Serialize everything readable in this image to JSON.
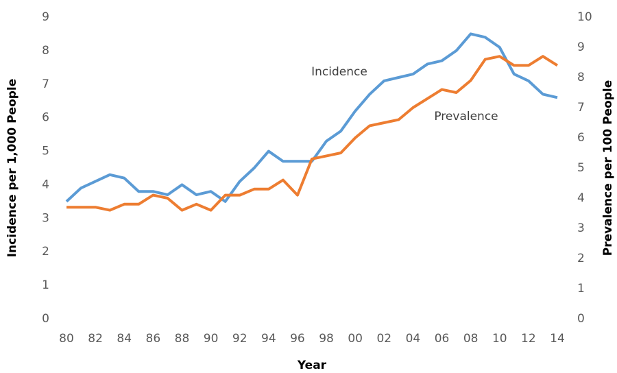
{
  "chart_data": {
    "type": "line",
    "xlabel": "Year",
    "ylabel": "Incidence per 1,000 People",
    "y2label": "Prevalence per 100 People",
    "categories": [
      "80",
      null,
      "82",
      null,
      "84",
      null,
      "86",
      null,
      "88",
      null,
      "90",
      null,
      "92",
      null,
      "94",
      null,
      "96",
      null,
      "98",
      null,
      "00",
      null,
      "02",
      null,
      "04",
      null,
      "06",
      null,
      "08",
      null,
      "10",
      null,
      "12",
      null,
      "14"
    ],
    "series": [
      {
        "name": "Incidence",
        "color": "#5b9bd5",
        "axis": "y",
        "values": [
          3.5,
          3.9,
          4.1,
          4.3,
          4.2,
          3.8,
          3.8,
          3.7,
          4.0,
          3.7,
          3.8,
          3.5,
          4.1,
          4.5,
          5.0,
          4.7,
          4.7,
          4.7,
          5.3,
          5.6,
          6.2,
          6.7,
          7.1,
          7.2,
          7.3,
          7.6,
          7.7,
          8.0,
          8.5,
          8.4,
          8.1,
          7.3,
          7.1,
          6.7,
          6.6
        ]
      },
      {
        "name": "Prevalence",
        "color": "#ed7d31",
        "axis": "y2",
        "values": [
          3.7,
          3.7,
          3.7,
          3.6,
          3.8,
          3.8,
          4.1,
          4.0,
          3.6,
          3.8,
          3.6,
          4.1,
          4.1,
          4.3,
          4.3,
          4.6,
          4.1,
          5.3,
          5.4,
          5.5,
          6.0,
          6.4,
          6.5,
          6.6,
          7.0,
          7.3,
          7.6,
          7.5,
          7.9,
          8.6,
          8.7,
          8.4,
          8.4,
          8.7,
          8.4
        ]
      }
    ],
    "ylim": [
      0,
      9
    ],
    "yticks": [
      0,
      1,
      2,
      3,
      4,
      5,
      6,
      7,
      8,
      9
    ],
    "y2lim": [
      0,
      10
    ],
    "y2ticks": [
      0,
      1,
      2,
      3,
      4,
      5,
      6,
      7,
      8,
      9,
      10
    ],
    "grid": false
  }
}
